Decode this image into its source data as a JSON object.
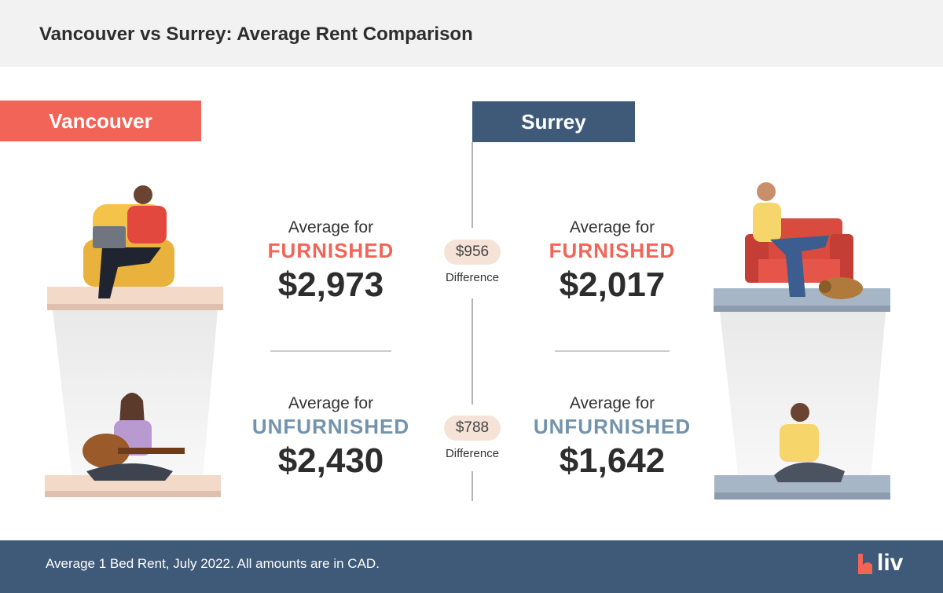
{
  "header": {
    "title": "Vancouver vs Surrey: Average Rent Comparison"
  },
  "cities": [
    {
      "name": "Vancouver",
      "rows": [
        {
          "label": "Average for",
          "type": "FURNISHED",
          "amount": "$2,973"
        },
        {
          "label": "Average for",
          "type": "UNFURNISHED",
          "amount": "$2,430"
        }
      ]
    },
    {
      "name": "Surrey",
      "rows": [
        {
          "label": "Average for",
          "type": "FURNISHED",
          "amount": "$2,017"
        },
        {
          "label": "Average for",
          "type": "UNFURNISHED",
          "amount": "$1,642"
        }
      ]
    }
  ],
  "differences": [
    {
      "amount": "$956",
      "label": "Difference"
    },
    {
      "amount": "$788",
      "label": "Difference"
    }
  ],
  "footer": {
    "note": "Average 1 Bed Rent, July 2022. All amounts are in CAD.",
    "logo": "liv"
  }
}
